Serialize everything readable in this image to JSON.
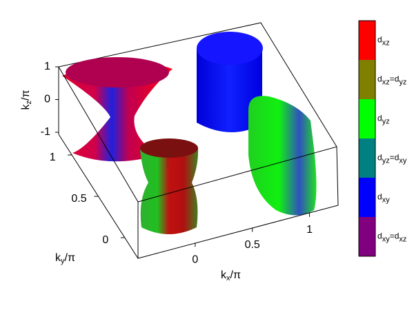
{
  "chart_data": {
    "type": "fermi-surface",
    "x_label": [
      "k",
      "x",
      "/π"
    ],
    "y_label": [
      "k",
      "y",
      "/π"
    ],
    "z_label": [
      "k",
      "z",
      "/π"
    ],
    "xlim": [
      -0.5,
      1.25
    ],
    "xticks": [
      0,
      0.5,
      1
    ],
    "ylim": [
      -0.25,
      1.25
    ],
    "yticks": [
      0,
      0.5,
      1
    ],
    "zlim": [
      -1,
      1
    ],
    "zticks": [
      -1,
      0,
      1
    ],
    "colorbar": [
      {
        "color": "#ff0000",
        "label": [
          "d",
          "xz"
        ]
      },
      {
        "color": "#808000",
        "label": [
          "d",
          "xz",
          "=d",
          "yz"
        ]
      },
      {
        "color": "#00ff00",
        "label": [
          "d",
          "yz"
        ]
      },
      {
        "color": "#008080",
        "label": [
          "d",
          "yz",
          "=d",
          "xy"
        ]
      },
      {
        "color": "#0000ff",
        "label": [
          "d",
          "xy"
        ]
      },
      {
        "color": "#800080",
        "label": [
          "d",
          "xy",
          "=d",
          "xz"
        ]
      }
    ]
  }
}
